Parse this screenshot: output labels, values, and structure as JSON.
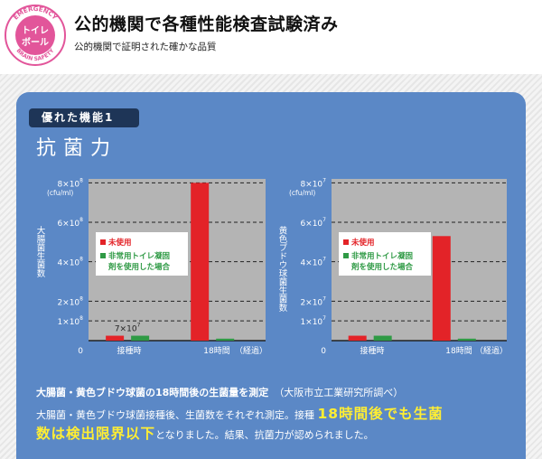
{
  "header": {
    "title": "公的機関で各種性能検査試験済み",
    "subtitle": "公的機関で証明された確かな品質",
    "badge_outer_top": "EMERGENCY",
    "badge_outer_bottom": "BRAIN SAFETY",
    "badge_inner_1": "トイレ",
    "badge_inner_2": "ボール"
  },
  "feature": {
    "tab_label": "優れた機能1",
    "name": "抗菌力"
  },
  "legend": {
    "unused": "未使用",
    "treated_line1": "非常用トイレ凝固",
    "treated_line2": "剤を使用した場合"
  },
  "chart_data": [
    {
      "type": "bar",
      "ylabel": "大腸菌生菌数",
      "yunit": "(cfu/ml)",
      "ticks": [
        {
          "value": 0,
          "mant": "0",
          "exp": ""
        },
        {
          "value": 1,
          "mant": "1×10",
          "exp": "8"
        },
        {
          "value": 2,
          "mant": "2×10",
          "exp": "8"
        },
        {
          "value": 4,
          "mant": "4×10",
          "exp": "8"
        },
        {
          "value": 6,
          "mant": "6×10",
          "exp": "8"
        },
        {
          "value": 8,
          "mant": "8×10",
          "exp": "8"
        }
      ],
      "ylim": [
        0,
        8.2
      ],
      "categories": [
        "接種時",
        "18時間"
      ],
      "x_suffix": "（経過）",
      "series": [
        {
          "name": "未使用",
          "color": "#e32328",
          "values": [
            0.25,
            8.0
          ]
        },
        {
          "name": "非常用トイレ凝固剤を使用した場合",
          "color": "#2f9a45",
          "values": [
            0.25,
            0.1
          ]
        }
      ],
      "annotation": {
        "mant": "7×10",
        "exp": "7"
      }
    },
    {
      "type": "bar",
      "ylabel": "黄色ブドウ球菌生菌数",
      "yunit": "(cfu/ml)",
      "ticks": [
        {
          "value": 0,
          "mant": "0",
          "exp": ""
        },
        {
          "value": 1,
          "mant": "1×10",
          "exp": "7"
        },
        {
          "value": 2,
          "mant": "2×10",
          "exp": "7"
        },
        {
          "value": 4,
          "mant": "4×10",
          "exp": "7"
        },
        {
          "value": 6,
          "mant": "6×10",
          "exp": "7"
        },
        {
          "value": 8,
          "mant": "8×10",
          "exp": "7"
        }
      ],
      "ylim": [
        0,
        8.2
      ],
      "categories": [
        "接種時",
        "18時間"
      ],
      "x_suffix": "（経過）",
      "series": [
        {
          "name": "未使用",
          "color": "#e32328",
          "values": [
            0.25,
            5.3
          ]
        },
        {
          "name": "非常用トイレ凝固剤を使用した場合",
          "color": "#2f9a45",
          "values": [
            0.25,
            0.1
          ]
        }
      ]
    }
  ],
  "bottom": {
    "heading": "大腸菌・黄色ブドウ球菌の18時間後の生菌量を測定",
    "source": "（大阪市立工業研究所調べ）",
    "text1": "大腸菌・黄色ブドウ球菌接種後、生菌数をそれぞれ測定。接種",
    "highlight1": "18時間後でも生菌",
    "highlight2": "数は検出限界以下",
    "text2": "となりました。結果、抗菌力が認められました。"
  }
}
